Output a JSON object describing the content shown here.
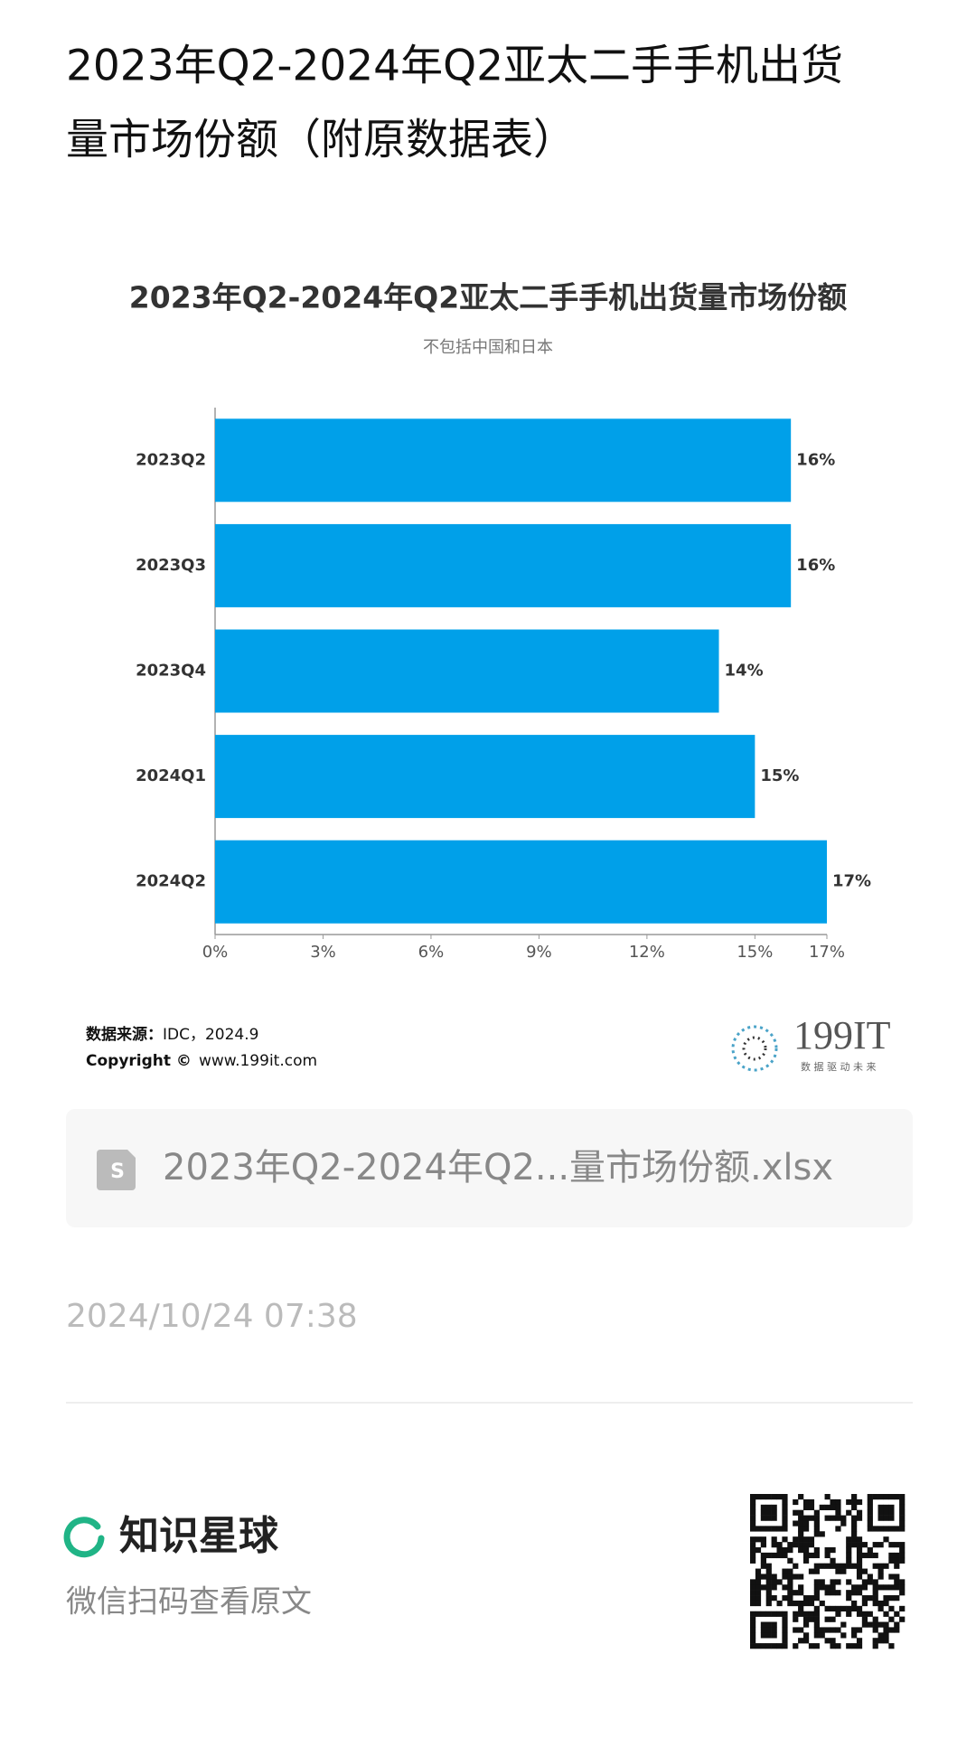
{
  "header": {
    "title_lines": [
      "2023年Q2-2024年Q2亚太二手手机出货",
      "量市场份额（附原数据表）"
    ]
  },
  "chart_data": {
    "type": "bar",
    "orientation": "horizontal",
    "title": "2023年Q2-2024年Q2亚太二手手机出货量市场份额",
    "subtitle": "不包括中国和日本",
    "categories": [
      "2023Q2",
      "2023Q3",
      "2023Q4",
      "2024Q1",
      "2024Q2"
    ],
    "values": [
      16,
      16,
      14,
      15,
      17
    ],
    "value_labels": [
      "16%",
      "16%",
      "14%",
      "15%",
      "17%"
    ],
    "color": "#00a0e9",
    "xlim": [
      0,
      17
    ],
    "xticks": [
      {
        "value": 0,
        "label": "0%"
      },
      {
        "value": 3,
        "label": "3%"
      },
      {
        "value": 6,
        "label": "6%"
      },
      {
        "value": 9,
        "label": "9%"
      },
      {
        "value": 12,
        "label": "12%"
      },
      {
        "value": 15,
        "label": "15%"
      },
      {
        "value": 17,
        "label": "17%"
      }
    ],
    "grid": false
  },
  "source": {
    "label": "数据来源：",
    "value": "IDC，2024.9",
    "copyright": "Copyright ©",
    "site": "www.199it.com"
  },
  "logo": {
    "name": "199IT",
    "slogan": "数 据 驱 动 未 来"
  },
  "attachment": {
    "filename": "2023年Q2-2024年Q2...量市场份额.xlsx",
    "icon": "S"
  },
  "date": "2024/10/24 07:38",
  "footer": {
    "brand": "知识星球",
    "hint": "微信扫码查看原文"
  }
}
